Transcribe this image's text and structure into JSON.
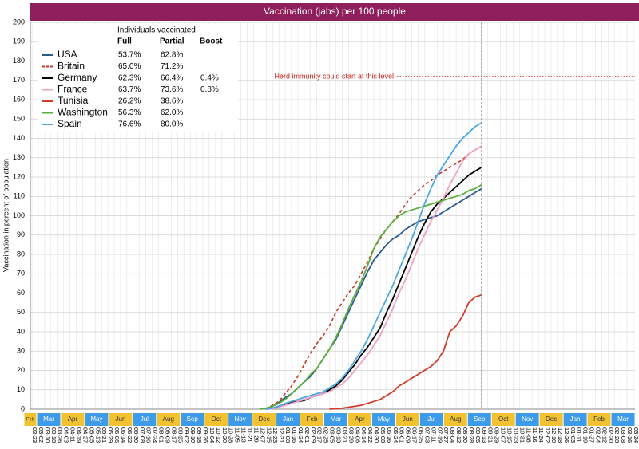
{
  "chart_data": {
    "type": "line",
    "title": "Vaccination (jabs) per 100 people",
    "y_label": "Vaccination in percent of population",
    "ylim": [
      0,
      200
    ],
    "yticks": [
      0,
      10,
      20,
      30,
      40,
      50,
      60,
      70,
      80,
      90,
      100,
      110,
      120,
      130,
      140,
      150,
      160,
      170,
      180,
      190,
      200
    ],
    "grid": true,
    "categories": [
      "02-23",
      "03-02",
      "03-10",
      "03-18",
      "03-26",
      "04-03",
      "04-11",
      "04-19",
      "04-27",
      "05-05",
      "05-13",
      "05-21",
      "05-29",
      "06-06",
      "06-14",
      "06-22",
      "06-30",
      "07-08",
      "07-16",
      "07-24",
      "08-01",
      "08-09",
      "08-17",
      "08-25",
      "09-02",
      "09-10",
      "09-18",
      "09-26",
      "10-04",
      "10-12",
      "10-20",
      "10-28",
      "11-05",
      "11-13",
      "11-21",
      "11-29",
      "12-07",
      "12-15",
      "12-23",
      "12-31",
      "01-08",
      "01-16",
      "01-24",
      "02-01",
      "02-09",
      "02-17",
      "02-25",
      "03-05",
      "03-13",
      "03-21",
      "03-29",
      "04-06",
      "04-14",
      "04-22",
      "04-30",
      "05-08",
      "05-16",
      "05-24",
      "06-01",
      "06-09",
      "06-17",
      "06-25",
      "07-03",
      "07-11",
      "07-19",
      "07-27",
      "08-04",
      "08-12",
      "08-20",
      "08-28",
      "09-05",
      "09-13",
      "09-21",
      "09-29",
      "10-07",
      "10-15",
      "10-23",
      "10-31",
      "11-08",
      "11-16",
      "11-24",
      "12-02",
      "12-10",
      "12-18",
      "12-26",
      "01-03",
      "01-11",
      "01-19",
      "01-27",
      "02-04",
      "02-12",
      "02-20",
      "02-28",
      "03-08",
      "03-16",
      "03-24"
    ],
    "months": [
      "Feb",
      "Mar",
      "Apr",
      "May",
      "Jun",
      "Jul",
      "Aug",
      "Sep",
      "Oct",
      "Nov",
      "Dec",
      "Jan",
      "Feb",
      "Mar",
      "Apr",
      "May",
      "Jun",
      "Jul",
      "Aug",
      "Sep",
      "Oct",
      "Nov",
      "Dec",
      "Jan",
      "Feb",
      "Mar"
    ],
    "legend_title": "Individuals vaccinated",
    "legend_columns": [
      "Full",
      "Partial",
      "Boost"
    ],
    "reference_line": {
      "value": 172,
      "label": "Herd immunity could start at this level",
      "color": "#d0231b"
    },
    "series": [
      {
        "name": "USA",
        "color": "#2c5a8c",
        "dash": false,
        "full": "53.7%",
        "partial": "62.8%",
        "boost": null,
        "values": [
          null,
          null,
          null,
          null,
          null,
          null,
          null,
          null,
          null,
          null,
          null,
          null,
          null,
          null,
          null,
          null,
          null,
          null,
          null,
          null,
          null,
          null,
          null,
          null,
          null,
          null,
          null,
          null,
          null,
          null,
          null,
          null,
          null,
          null,
          null,
          null,
          0,
          0.5,
          1.5,
          3.5,
          6,
          8,
          11,
          14,
          17,
          21,
          26,
          31,
          36,
          43,
          50,
          57,
          64,
          71,
          77,
          81,
          85,
          88,
          90,
          93,
          95,
          97,
          98,
          99,
          100,
          102,
          104,
          106,
          108,
          110,
          112,
          114,
          null,
          null,
          null,
          null,
          null,
          null,
          null,
          null,
          null,
          null,
          null,
          null,
          null,
          null,
          null,
          null,
          null,
          null,
          null,
          null,
          null,
          null,
          null,
          null
        ]
      },
      {
        "name": "Britain",
        "color": "#c0392b",
        "dash": true,
        "full": "65.0%",
        "partial": "71.2%",
        "boost": null,
        "values": [
          null,
          null,
          null,
          null,
          null,
          null,
          null,
          null,
          null,
          null,
          null,
          null,
          null,
          null,
          null,
          null,
          null,
          null,
          null,
          null,
          null,
          null,
          null,
          null,
          null,
          null,
          null,
          null,
          null,
          null,
          null,
          null,
          null,
          null,
          null,
          null,
          0,
          0.5,
          2,
          4,
          8,
          12,
          17,
          23,
          29,
          34,
          38,
          43,
          50,
          55,
          60,
          64,
          70,
          76,
          83,
          88,
          93,
          97,
          101,
          106,
          110,
          113,
          116,
          118,
          121,
          123,
          125,
          127,
          129,
          132,
          134,
          136,
          null,
          null,
          null,
          null,
          null,
          null,
          null,
          null,
          null,
          null,
          null,
          null,
          null,
          null,
          null,
          null,
          null,
          null,
          null,
          null,
          null,
          null,
          null,
          null
        ]
      },
      {
        "name": "Germany",
        "color": "#000000",
        "dash": false,
        "full": "62.3%",
        "partial": "66.4%",
        "boost": "0.4%",
        "values": [
          null,
          null,
          null,
          null,
          null,
          null,
          null,
          null,
          null,
          null,
          null,
          null,
          null,
          null,
          null,
          null,
          null,
          null,
          null,
          null,
          null,
          null,
          null,
          null,
          null,
          null,
          null,
          null,
          null,
          null,
          null,
          null,
          null,
          null,
          null,
          null,
          null,
          0,
          0.5,
          1.5,
          2.5,
          3.5,
          4,
          4.5,
          6,
          7,
          8,
          10,
          12,
          15,
          19,
          23,
          28,
          32,
          37,
          42,
          50,
          57,
          65,
          73,
          81,
          89,
          96,
          102,
          106,
          109,
          112,
          115,
          118,
          121,
          123,
          125,
          null,
          null,
          null,
          null,
          null,
          null,
          null,
          null,
          null,
          null,
          null,
          null,
          null,
          null,
          null,
          null,
          null,
          null,
          null,
          null,
          null,
          null,
          null,
          null
        ]
      },
      {
        "name": "France",
        "color": "#f0a0c4",
        "dash": false,
        "full": "63.7%",
        "partial": "73.6%",
        "boost": "0.8%",
        "values": [
          null,
          null,
          null,
          null,
          null,
          null,
          null,
          null,
          null,
          null,
          null,
          null,
          null,
          null,
          null,
          null,
          null,
          null,
          null,
          null,
          null,
          null,
          null,
          null,
          null,
          null,
          null,
          null,
          null,
          null,
          null,
          null,
          null,
          null,
          null,
          null,
          null,
          0,
          0.2,
          1,
          2,
          3,
          4,
          5,
          6,
          7,
          8,
          9,
          11,
          13,
          16,
          20,
          24,
          28,
          33,
          38,
          45,
          52,
          60,
          67,
          75,
          83,
          90,
          97,
          103,
          109,
          116,
          122,
          128,
          132,
          134,
          136,
          null,
          null,
          null,
          null,
          null,
          null,
          null,
          null,
          null,
          null,
          null,
          null,
          null,
          null,
          null,
          null,
          null,
          null,
          null,
          null,
          null,
          null,
          null,
          null
        ]
      },
      {
        "name": "Tunisia",
        "color": "#d63a2a",
        "dash": false,
        "full": "26.2%",
        "partial": "38.6%",
        "boost": null,
        "values": [
          null,
          null,
          null,
          null,
          null,
          null,
          null,
          null,
          null,
          null,
          null,
          null,
          null,
          null,
          null,
          null,
          null,
          null,
          null,
          null,
          null,
          null,
          null,
          null,
          null,
          null,
          null,
          null,
          null,
          null,
          null,
          null,
          null,
          null,
          null,
          null,
          null,
          null,
          null,
          null,
          null,
          null,
          null,
          null,
          null,
          null,
          null,
          0,
          0.2,
          0.5,
          1,
          1.5,
          2,
          3,
          4,
          5,
          7,
          9,
          12,
          14,
          16,
          18,
          20,
          22,
          25,
          30,
          40,
          43,
          48,
          55,
          58,
          59,
          null,
          null,
          null,
          null,
          null,
          null,
          null,
          null,
          null,
          null,
          null,
          null,
          null,
          null,
          null,
          null,
          null,
          null,
          null,
          null,
          null,
          null,
          null,
          null
        ]
      },
      {
        "name": "Washington",
        "color": "#5cae3c",
        "dash": false,
        "full": "56.3%",
        "partial": "62.0%",
        "boost": null,
        "values": [
          null,
          null,
          null,
          null,
          null,
          null,
          null,
          null,
          null,
          null,
          null,
          null,
          null,
          null,
          null,
          null,
          null,
          null,
          null,
          null,
          null,
          null,
          null,
          null,
          null,
          null,
          null,
          null,
          null,
          null,
          null,
          null,
          null,
          null,
          null,
          null,
          0,
          0.5,
          1.5,
          3,
          5,
          8,
          11,
          14,
          18,
          21,
          26,
          31,
          37,
          44,
          52,
          59,
          66,
          74,
          83,
          89,
          93,
          97,
          100,
          102,
          103,
          104,
          105,
          106,
          107,
          108,
          109,
          110,
          111,
          113,
          114,
          116,
          null,
          null,
          null,
          null,
          null,
          null,
          null,
          null,
          null,
          null,
          null,
          null,
          null,
          null,
          null,
          null,
          null,
          null,
          null,
          null,
          null,
          null,
          null,
          null
        ]
      },
      {
        "name": "Spain",
        "color": "#4ca6e8",
        "dash": false,
        "full": "76.6%",
        "partial": "80.0%",
        "boost": null,
        "values": [
          null,
          null,
          null,
          null,
          null,
          null,
          null,
          null,
          null,
          null,
          null,
          null,
          null,
          null,
          null,
          null,
          null,
          null,
          null,
          null,
          null,
          null,
          null,
          null,
          null,
          null,
          null,
          null,
          null,
          null,
          null,
          null,
          null,
          null,
          null,
          null,
          null,
          0,
          0.5,
          1.5,
          3,
          4,
          5,
          6,
          7,
          8,
          9,
          11,
          13,
          16,
          20,
          25,
          30,
          36,
          43,
          50,
          57,
          64,
          72,
          80,
          88,
          97,
          106,
          114,
          121,
          126,
          131,
          136,
          140,
          143,
          146,
          148,
          null,
          null,
          null,
          null,
          null,
          null,
          null,
          null,
          null,
          null,
          null,
          null,
          null,
          null,
          null,
          null,
          null,
          null,
          null,
          null,
          null,
          null,
          null,
          null
        ]
      }
    ]
  }
}
